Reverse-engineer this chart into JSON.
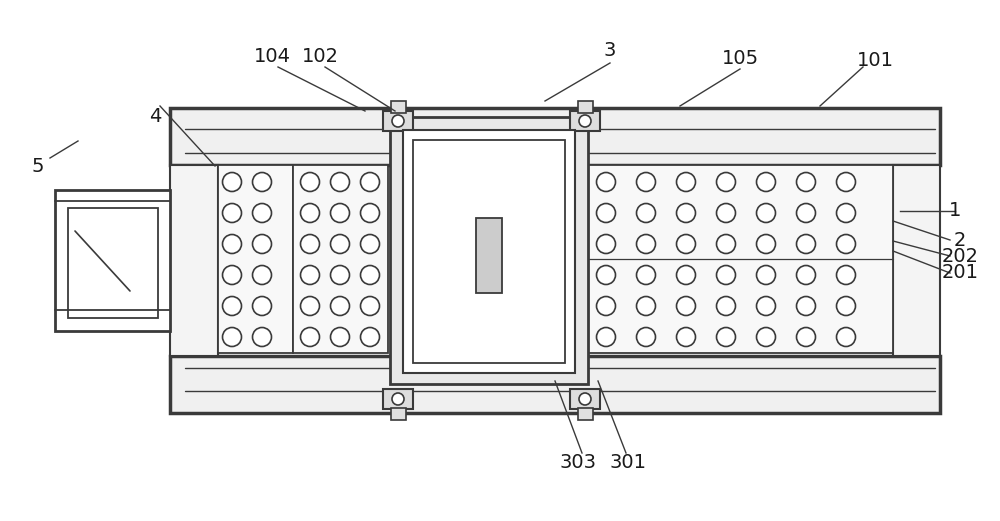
{
  "bg_color": "#ffffff",
  "line_color": "#3a3a3a",
  "fig_width": 10.0,
  "fig_height": 5.21,
  "label_fontsize": 14
}
